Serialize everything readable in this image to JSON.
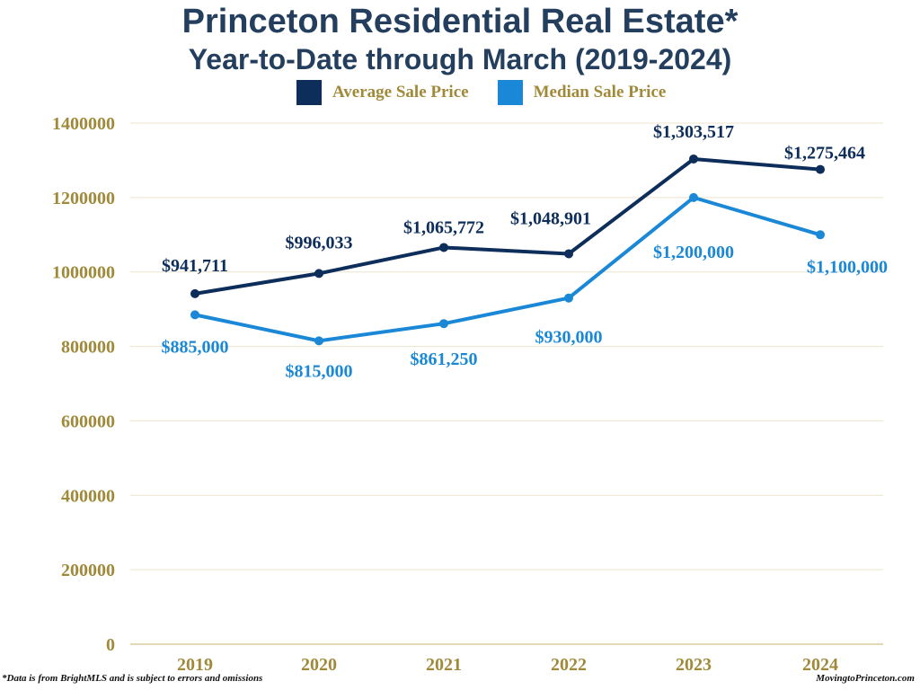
{
  "header": {
    "title": "Princeton Residential Real Estate*",
    "subtitle": "Year-to-Date through March (2019-2024)"
  },
  "footer": {
    "note": "*Data is from BrightMLS and is subject to errors and omissions",
    "source": "MovingtoPrinceton.com"
  },
  "colors": {
    "average": "#0d2d5a",
    "median": "#1a88d6",
    "axis_text": "#a08a3a",
    "grid": "#ece4cc"
  },
  "chart_data": {
    "type": "line",
    "title": "Princeton Residential Real Estate* Year-to-Date through March (2019-2024)",
    "xlabel": "",
    "ylabel": "",
    "categories": [
      "2019",
      "2020",
      "2021",
      "2022",
      "2023",
      "2024"
    ],
    "ylim": [
      0,
      1400000
    ],
    "yticks": [
      0,
      200000,
      400000,
      600000,
      800000,
      1000000,
      1200000,
      1400000
    ],
    "ytick_labels": [
      "0",
      "200000",
      "400000",
      "600000",
      "800000",
      "1000000",
      "1200000",
      "1400000"
    ],
    "grid": true,
    "legend_position": "top-center",
    "series": [
      {
        "name": "Average Sale Price",
        "values": [
          941711,
          996033,
          1065772,
          1048901,
          1303517,
          1275464
        ],
        "labels": [
          "$941,711",
          "$996,033",
          "$1,065,772",
          "$1,048,901",
          "$1,303,517",
          "$1,275,464"
        ]
      },
      {
        "name": "Median Sale Price",
        "values": [
          885000,
          815000,
          861250,
          930000,
          1200000,
          1100000
        ],
        "labels": [
          "$885,000",
          "$815,000",
          "$861,250",
          "$930,000",
          "$1,200,000",
          "$1,100,000"
        ]
      }
    ]
  }
}
